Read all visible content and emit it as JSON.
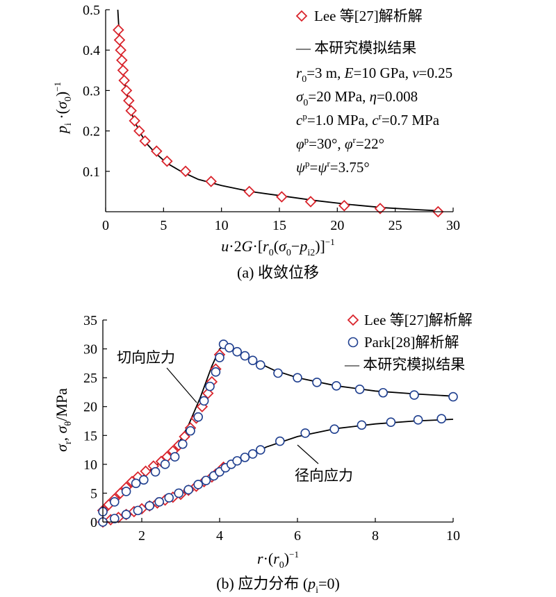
{
  "chart_data": [
    {
      "type": "line",
      "caption": "(a) 收敛位移",
      "xlabel": "u·2G·[r0(σ0−pi2)]−1",
      "ylabel": "pi·(σ0)−1",
      "xlim": [
        0,
        30
      ],
      "ylim": [
        0,
        0.5
      ],
      "xticks": [
        0,
        5,
        10,
        15,
        20,
        25,
        30
      ],
      "yticks": [
        0.1,
        0.2,
        0.3,
        0.4,
        0.5
      ],
      "grid": false,
      "legend_position": "top-right",
      "legend": {
        "lee_label": "Lee 等[27]解析解",
        "sim_label": "— 本研究模拟结果"
      },
      "params": [
        "r0=3 m, E=10 GPa, ν=0.25",
        "σ0=20 MPa, η=0.008",
        "cp=1.0 MPa, cr=0.7 MPa",
        "φp=30°, φr=22°",
        "ψp=ψr=3.75°"
      ],
      "series": [
        {
          "name": "Lee 等[27]解析解",
          "style": "marker",
          "marker": "diamond",
          "color": "#d9232b",
          "x": [
            1.1,
            1.2,
            1.3,
            1.4,
            1.5,
            1.6,
            1.8,
            2.0,
            2.2,
            2.5,
            2.9,
            3.4,
            4.4,
            5.3,
            6.9,
            9.1,
            12.4,
            15.2,
            17.7,
            20.6,
            23.7,
            28.7
          ],
          "y": [
            0.45,
            0.425,
            0.4,
            0.375,
            0.35,
            0.325,
            0.3,
            0.275,
            0.25,
            0.225,
            0.2,
            0.175,
            0.15,
            0.125,
            0.1,
            0.075,
            0.05,
            0.037,
            0.025,
            0.015,
            0.008,
            0.0
          ]
        },
        {
          "name": "本研究模拟结果",
          "style": "line",
          "color": "#000000",
          "x": [
            1.05,
            1.15,
            1.3,
            1.5,
            1.7,
            2.0,
            2.4,
            2.9,
            3.5,
            4.3,
            5.3,
            6.5,
            8.0,
            10.0,
            12.5,
            15.0,
            18.0,
            21.0,
            24.0,
            27.0,
            29.0
          ],
          "y": [
            0.5,
            0.45,
            0.4,
            0.35,
            0.31,
            0.27,
            0.23,
            0.2,
            0.17,
            0.145,
            0.12,
            0.1,
            0.08,
            0.065,
            0.05,
            0.04,
            0.028,
            0.018,
            0.01,
            0.005,
            0.002
          ]
        }
      ]
    },
    {
      "type": "line",
      "caption": "(b) 应力分布 (pi=0)",
      "xlabel": "r·(r0)−1",
      "ylabel": "σr, σθ/MPa",
      "xlim": [
        1,
        10
      ],
      "ylim": [
        0,
        35
      ],
      "xticks": [
        2,
        4,
        6,
        8,
        10
      ],
      "yticks": [
        0,
        5,
        10,
        15,
        20,
        25,
        30,
        35
      ],
      "grid": false,
      "legend_position": "top-right",
      "legend": {
        "lee_label": "Lee 等[27]解析解",
        "park_label": "Park[28]解析解",
        "sim_label": "— 本研究模拟结果"
      },
      "annotations": {
        "tangential": "切向应力",
        "radial": "径向应力"
      },
      "series": [
        {
          "name": "Lee 等[27]解析解 (切向)",
          "style": "marker",
          "marker": "diamond",
          "color": "#d9232b",
          "x": [
            1.0,
            1.15,
            1.3,
            1.45,
            1.6,
            1.75,
            1.9,
            2.1,
            2.3,
            2.5,
            2.65,
            2.8,
            2.95,
            3.1,
            3.25,
            3.4,
            3.55,
            3.7,
            3.8,
            3.9,
            4.0
          ],
          "y": [
            2.0,
            3.0,
            4.0,
            5.0,
            6.0,
            7.0,
            7.8,
            8.8,
            9.7,
            10.5,
            11.3,
            12.3,
            13.3,
            14.8,
            16.3,
            18.0,
            20.0,
            22.3,
            24.3,
            26.5,
            29.0
          ]
        },
        {
          "name": "Lee 等[27]解析解 (径向)",
          "style": "marker",
          "marker": "diamond",
          "color": "#d9232b",
          "x": [
            1.0,
            1.2,
            1.4,
            1.6,
            1.8,
            2.0,
            2.2,
            2.4,
            2.6,
            2.8,
            3.0,
            3.2,
            3.4,
            3.6,
            3.8,
            3.9,
            4.0,
            4.1
          ],
          "y": [
            0.0,
            0.4,
            0.8,
            1.3,
            1.8,
            2.3,
            2.8,
            3.3,
            3.8,
            4.3,
            4.8,
            5.5,
            6.2,
            7.0,
            7.8,
            8.3,
            8.8,
            9.5
          ]
        },
        {
          "name": "Park[28]解析解 (切向)",
          "style": "marker",
          "marker": "circle",
          "color": "#1f3f8f",
          "x": [
            1.0,
            1.3,
            1.6,
            1.85,
            2.05,
            2.35,
            2.6,
            2.85,
            3.05,
            3.25,
            3.45,
            3.6,
            3.75,
            3.9,
            4.0,
            4.1,
            4.25,
            4.45,
            4.65,
            4.85,
            5.05,
            5.5,
            6.0,
            6.5,
            7.0,
            7.6,
            8.2,
            9.0,
            10.0
          ],
          "y": [
            1.8,
            3.5,
            5.3,
            6.7,
            7.3,
            8.7,
            10.0,
            11.3,
            13.5,
            15.8,
            18.2,
            21.0,
            23.5,
            26.0,
            28.5,
            30.8,
            30.2,
            29.5,
            28.8,
            28.0,
            27.2,
            25.8,
            25.0,
            24.2,
            23.6,
            23.0,
            22.4,
            22.0,
            21.7
          ]
        },
        {
          "name": "Park[28]解析解 (径向)",
          "style": "marker",
          "marker": "circle",
          "color": "#1f3f8f",
          "x": [
            1.0,
            1.3,
            1.6,
            1.9,
            2.2,
            2.45,
            2.7,
            2.95,
            3.2,
            3.45,
            3.65,
            3.85,
            4.0,
            4.15,
            4.3,
            4.45,
            4.65,
            4.85,
            5.05,
            5.55,
            6.2,
            6.95,
            7.65,
            8.4,
            9.1,
            9.7
          ],
          "y": [
            0.0,
            0.6,
            1.3,
            2.0,
            2.8,
            3.5,
            4.2,
            5.0,
            5.6,
            6.5,
            7.2,
            8.0,
            8.7,
            9.4,
            10.0,
            10.6,
            11.2,
            11.8,
            12.5,
            14.0,
            15.4,
            16.1,
            16.8,
            17.3,
            17.7,
            17.9
          ]
        },
        {
          "name": "本研究模拟结果 (切向)",
          "style": "line",
          "color": "#000000",
          "x": [
            1.0,
            1.5,
            2.0,
            2.5,
            2.9,
            3.2,
            3.5,
            3.8,
            4.0,
            4.15,
            4.4,
            4.8,
            5.4,
            6.0,
            7.0,
            8.0,
            9.0,
            10.0
          ],
          "y": [
            2.0,
            4.8,
            7.8,
            10.5,
            13.0,
            16.8,
            21.5,
            27.0,
            30.0,
            30.6,
            29.7,
            28.2,
            26.3,
            25.0,
            23.6,
            22.7,
            22.2,
            21.8
          ]
        },
        {
          "name": "本研究模拟结果 (径向)",
          "style": "line",
          "color": "#000000",
          "x": [
            1.0,
            1.5,
            2.0,
            2.5,
            3.0,
            3.5,
            4.0,
            4.2,
            4.6,
            5.2,
            6.0,
            7.0,
            8.0,
            9.0,
            10.0
          ],
          "y": [
            0.0,
            1.0,
            2.2,
            3.5,
            4.9,
            6.5,
            8.5,
            9.4,
            11.0,
            13.0,
            14.8,
            16.2,
            17.0,
            17.5,
            17.8
          ]
        }
      ]
    }
  ]
}
